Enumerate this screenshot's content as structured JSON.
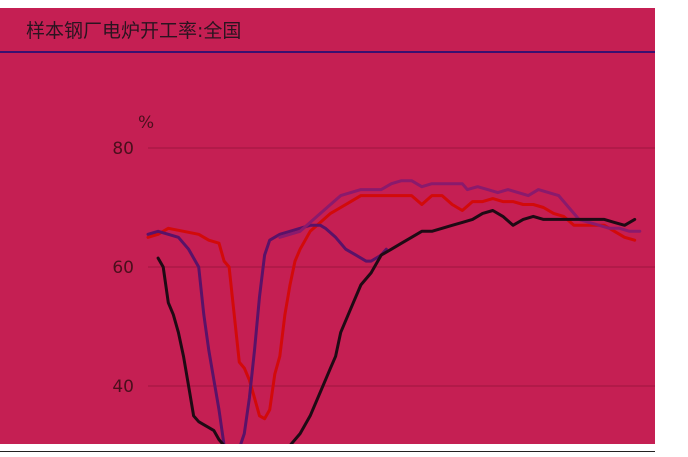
{
  "title": "样本钢厂电炉开工率:全国",
  "colors": {
    "background": "#c51f53",
    "grid": "#a0143f"
  },
  "chart_data": {
    "type": "line",
    "title": "样本钢厂电炉开工率:全国",
    "unit": "%",
    "ylim": [
      30,
      90
    ],
    "yticks": [
      40,
      60,
      80
    ],
    "grid": true,
    "xlim": [
      0,
      100
    ],
    "series": [
      {
        "color": "#d20a0a",
        "points": [
          [
            0,
            65
          ],
          [
            2,
            65.5
          ],
          [
            4,
            66.5
          ],
          [
            7,
            66
          ],
          [
            10,
            65.5
          ],
          [
            12,
            64.5
          ],
          [
            14,
            64
          ],
          [
            15,
            61
          ],
          [
            16,
            60
          ],
          [
            17,
            52
          ],
          [
            18,
            44
          ],
          [
            19,
            43
          ],
          [
            20,
            41
          ],
          [
            21,
            38
          ],
          [
            22,
            35
          ],
          [
            23,
            34.5
          ],
          [
            24,
            36
          ],
          [
            25,
            42
          ],
          [
            26,
            45
          ],
          [
            27,
            52
          ],
          [
            28,
            57
          ],
          [
            29,
            61
          ],
          [
            30,
            63
          ],
          [
            32,
            66
          ],
          [
            34,
            67.5
          ],
          [
            36,
            69
          ],
          [
            38,
            70
          ],
          [
            40,
            71
          ],
          [
            42,
            72
          ],
          [
            44,
            72
          ],
          [
            48,
            72
          ],
          [
            52,
            72
          ],
          [
            54,
            70.5
          ],
          [
            56,
            72
          ],
          [
            58,
            72
          ],
          [
            60,
            70.5
          ],
          [
            62,
            69.5
          ],
          [
            64,
            71
          ],
          [
            66,
            71
          ],
          [
            68,
            71.5
          ],
          [
            70,
            71
          ],
          [
            72,
            71
          ],
          [
            74,
            70.5
          ],
          [
            76,
            70.5
          ],
          [
            78,
            70
          ],
          [
            80,
            69
          ],
          [
            82,
            68.5
          ],
          [
            84,
            67
          ],
          [
            86,
            67
          ],
          [
            88,
            67
          ],
          [
            90,
            67
          ],
          [
            92,
            66
          ],
          [
            94,
            65
          ],
          [
            96,
            64.5
          ]
        ]
      },
      {
        "color": "#5a1268",
        "points": [
          [
            0,
            65.5
          ],
          [
            2,
            66
          ],
          [
            4,
            65.5
          ],
          [
            6,
            65
          ],
          [
            8,
            63
          ],
          [
            10,
            60
          ],
          [
            11,
            52
          ],
          [
            12,
            46
          ],
          [
            13,
            41
          ],
          [
            14,
            36
          ],
          [
            15,
            30
          ],
          [
            16,
            29
          ],
          [
            17,
            29
          ],
          [
            18,
            29.5
          ],
          [
            19,
            32
          ],
          [
            20,
            38
          ],
          [
            21,
            46
          ],
          [
            22,
            55
          ],
          [
            23,
            62
          ],
          [
            24,
            64.5
          ],
          [
            26,
            65.5
          ],
          [
            28,
            66
          ],
          [
            30,
            66.5
          ],
          [
            32,
            67
          ],
          [
            34,
            67
          ],
          [
            35,
            66.5
          ],
          [
            37,
            65
          ],
          [
            39,
            63
          ],
          [
            41,
            62
          ],
          [
            43,
            61
          ],
          [
            44,
            61
          ],
          [
            45,
            61.5
          ],
          [
            46,
            62
          ],
          [
            47,
            63
          ]
        ]
      },
      {
        "color": "#8a1a6c",
        "points": [
          [
            26,
            65
          ],
          [
            28,
            65.5
          ],
          [
            30,
            66
          ],
          [
            32,
            67.5
          ],
          [
            34,
            69
          ],
          [
            36,
            70.5
          ],
          [
            38,
            72
          ],
          [
            40,
            72.5
          ],
          [
            42,
            73
          ],
          [
            44,
            73
          ],
          [
            46,
            73
          ],
          [
            48,
            74
          ],
          [
            50,
            74.5
          ],
          [
            52,
            74.5
          ],
          [
            54,
            73.5
          ],
          [
            56,
            74
          ],
          [
            58,
            74
          ],
          [
            60,
            74
          ],
          [
            62,
            74
          ],
          [
            63,
            73
          ],
          [
            65,
            73.5
          ],
          [
            67,
            73
          ],
          [
            69,
            72.5
          ],
          [
            71,
            73
          ],
          [
            73,
            72.5
          ],
          [
            75,
            72
          ],
          [
            77,
            73
          ],
          [
            79,
            72.5
          ],
          [
            81,
            72
          ],
          [
            83,
            70
          ],
          [
            85,
            68
          ],
          [
            87,
            67.5
          ],
          [
            89,
            67
          ],
          [
            91,
            66.5
          ],
          [
            93,
            66.5
          ],
          [
            95,
            66
          ],
          [
            97,
            66
          ]
        ]
      },
      {
        "color": "#1e0a14",
        "points": [
          [
            2,
            61.5
          ],
          [
            3,
            60
          ],
          [
            4,
            54
          ],
          [
            5,
            52
          ],
          [
            6,
            49
          ],
          [
            7,
            45
          ],
          [
            8,
            40
          ],
          [
            9,
            35
          ],
          [
            10,
            34
          ],
          [
            11,
            33.5
          ],
          [
            12,
            33
          ],
          [
            13,
            32.5
          ],
          [
            14,
            31
          ],
          [
            15,
            30
          ],
          [
            17,
            29.5
          ],
          [
            19,
            29.5
          ],
          [
            20,
            29.5
          ],
          [
            21,
            29
          ],
          [
            22,
            29
          ],
          [
            24,
            29
          ],
          [
            26,
            29
          ],
          [
            28,
            30
          ],
          [
            30,
            32
          ],
          [
            32,
            35
          ],
          [
            34,
            39
          ],
          [
            36,
            43
          ],
          [
            37,
            45
          ],
          [
            38,
            49
          ],
          [
            40,
            53
          ],
          [
            42,
            57
          ],
          [
            44,
            59
          ],
          [
            46,
            62
          ],
          [
            48,
            63
          ],
          [
            50,
            64
          ],
          [
            52,
            65
          ],
          [
            54,
            66
          ],
          [
            56,
            66
          ],
          [
            58,
            66.5
          ],
          [
            60,
            67
          ],
          [
            62,
            67.5
          ],
          [
            64,
            68
          ],
          [
            66,
            69
          ],
          [
            68,
            69.5
          ],
          [
            70,
            68.5
          ],
          [
            72,
            67
          ],
          [
            74,
            68
          ],
          [
            76,
            68.5
          ],
          [
            78,
            68
          ],
          [
            80,
            68
          ],
          [
            82,
            68
          ],
          [
            84,
            68
          ],
          [
            86,
            68
          ],
          [
            88,
            68
          ],
          [
            90,
            68
          ],
          [
            92,
            67.5
          ],
          [
            94,
            67
          ],
          [
            96,
            68
          ]
        ]
      }
    ]
  }
}
